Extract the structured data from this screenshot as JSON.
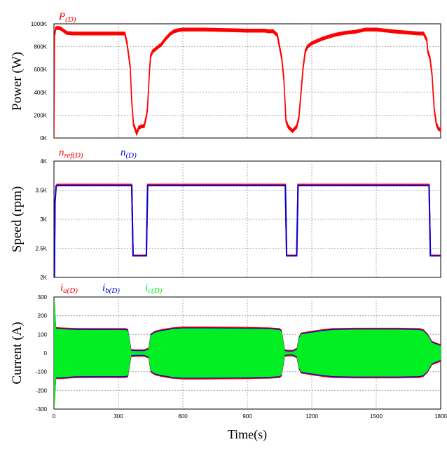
{
  "colors": {
    "red": "#ff0000",
    "blue": "#0000dd",
    "green": "#00ee22",
    "grid": "#9a9a9a"
  },
  "chart_data": [
    {
      "type": "line",
      "ylabel": "Power (W)",
      "ylim": [
        0,
        1000000
      ],
      "ytick_labels": [
        "0K",
        "200K",
        "400K",
        "600K",
        "800K",
        "1000K"
      ],
      "ytick_values": [
        0,
        200000,
        400000,
        600000,
        800000,
        1000000
      ],
      "xlim": [
        0,
        1800
      ],
      "xtick_values": [
        0,
        300,
        600,
        900,
        1200,
        1500,
        1800
      ],
      "grid": true,
      "legend": [
        {
          "main": "P",
          "sub": "(D)",
          "color": "#ff0000"
        }
      ],
      "series": [
        {
          "name": "P(D)",
          "color": "#ff0000",
          "band": 12000,
          "x": [
            0,
            3,
            8,
            15,
            30,
            60,
            90,
            100,
            150,
            200,
            250,
            300,
            320,
            330,
            340,
            355,
            362,
            370,
            378,
            385,
            395,
            405,
            420,
            430,
            435,
            440,
            445,
            450,
            460,
            480,
            500,
            520,
            540,
            560,
            580,
            600,
            620,
            700,
            800,
            900,
            980,
            1000,
            1020,
            1040,
            1060,
            1070,
            1080,
            1090,
            1100,
            1110,
            1120,
            1130,
            1140,
            1150,
            1160,
            1170,
            1180,
            1200,
            1250,
            1300,
            1350,
            1400,
            1450,
            1500,
            1600,
            1700,
            1720,
            1735,
            1740,
            1745,
            1750,
            1760,
            1770,
            1780,
            1790,
            1800,
            1820
          ],
          "y": [
            0,
            900000,
            960000,
            965000,
            960000,
            920000,
            915000,
            915000,
            915000,
            915000,
            915000,
            915000,
            915000,
            915000,
            830000,
            620000,
            320000,
            120000,
            80000,
            40000,
            90000,
            100000,
            105000,
            190000,
            250000,
            420000,
            600000,
            720000,
            760000,
            790000,
            820000,
            870000,
            910000,
            935000,
            945000,
            950000,
            950000,
            950000,
            945000,
            940000,
            940000,
            935000,
            935000,
            900000,
            700000,
            520000,
            150000,
            100000,
            80000,
            60000,
            80000,
            100000,
            180000,
            400000,
            620000,
            760000,
            800000,
            830000,
            870000,
            900000,
            920000,
            930000,
            950000,
            950000,
            930000,
            915000,
            915000,
            860000,
            760000,
            730000,
            700000,
            550000,
            250000,
            120000,
            80000,
            70000,
            70000
          ]
        }
      ]
    },
    {
      "type": "line",
      "ylabel": "Speed (rpm)",
      "ylim": [
        2000,
        4000
      ],
      "ytick_labels": [
        "2K",
        "2.5K",
        "3K",
        "3.5K",
        "4K"
      ],
      "ytick_values": [
        2000,
        2500,
        3000,
        3500,
        4000
      ],
      "xlim": [
        0,
        1800
      ],
      "xtick_values": [
        0,
        300,
        600,
        900,
        1200,
        1500,
        1800
      ],
      "grid": true,
      "legend": [
        {
          "main": "n",
          "sub": "ref(D)",
          "color": "#ff0000"
        },
        {
          "main": "n",
          "sub": "(D)",
          "color": "#0000dd"
        }
      ],
      "series": [
        {
          "name": "nref(D)",
          "color": "#ff0000",
          "x": [
            0,
            2,
            5,
            10,
            15,
            355,
            362,
            368,
            430,
            436,
            442,
            1070,
            1077,
            1083,
            1130,
            1136,
            1142,
            1740,
            1746,
            1752,
            1820
          ],
          "y": [
            2000,
            2000,
            3300,
            3580,
            3600,
            3600,
            3600,
            2380,
            2380,
            3600,
            3600,
            3600,
            3600,
            2380,
            2380,
            3600,
            3600,
            3600,
            3600,
            2380,
            2380
          ]
        },
        {
          "name": "n(D)",
          "color": "#0000dd",
          "x": [
            0,
            2,
            5,
            10,
            15,
            355,
            362,
            368,
            430,
            436,
            442,
            1070,
            1077,
            1083,
            1130,
            1136,
            1142,
            1740,
            1746,
            1752,
            1820
          ],
          "y": [
            2000,
            2000,
            3300,
            3560,
            3580,
            3580,
            3580,
            2370,
            2370,
            3580,
            3580,
            3580,
            3580,
            2370,
            2370,
            3580,
            3580,
            3580,
            3580,
            2370,
            2370
          ]
        }
      ]
    },
    {
      "type": "area",
      "ylabel": "Current (A)",
      "xlabel": "Time(s)",
      "ylim": [
        -300,
        300
      ],
      "ytick_labels": [
        "-300",
        "-200",
        "-100",
        "0",
        "100",
        "200",
        "300"
      ],
      "ytick_values": [
        -300,
        -200,
        -100,
        0,
        100,
        200,
        300
      ],
      "xlim": [
        0,
        1800
      ],
      "xtick_labels": [
        "0",
        "300",
        "600",
        "900",
        "1200",
        "1500",
        "1800"
      ],
      "xtick_values": [
        0,
        300,
        600,
        900,
        1200,
        1500,
        1800
      ],
      "grid": true,
      "legend": [
        {
          "main": "i",
          "sub": "a(D)",
          "color": "#ff0000"
        },
        {
          "main": "i",
          "sub": "b(D)",
          "color": "#0000dd"
        },
        {
          "main": "i",
          "sub": "c(D)",
          "color": "#00ee22"
        }
      ],
      "envelope": {
        "x": [
          0,
          3,
          10,
          30,
          100,
          200,
          300,
          330,
          345,
          360,
          380,
          420,
          440,
          450,
          470,
          500,
          550,
          600,
          700,
          900,
          1000,
          1050,
          1060,
          1075,
          1090,
          1110,
          1130,
          1140,
          1150,
          1200,
          1250,
          1300,
          1400,
          1600,
          1700,
          1720,
          1740,
          1760,
          1800,
          1820
        ],
        "upper": [
          300,
          280,
          130,
          128,
          125,
          124,
          124,
          124,
          120,
          12,
          10,
          10,
          20,
          95,
          110,
          118,
          128,
          132,
          132,
          130,
          128,
          124,
          115,
          10,
          8,
          8,
          18,
          80,
          100,
          110,
          118,
          124,
          126,
          126,
          124,
          118,
          95,
          55,
          38,
          38
        ],
        "lower": [
          -300,
          -280,
          -130,
          -130,
          -125,
          -124,
          -124,
          -124,
          -120,
          -12,
          -10,
          -10,
          -20,
          -95,
          -110,
          -118,
          -128,
          -132,
          -132,
          -130,
          -128,
          -124,
          -115,
          -10,
          -8,
          -8,
          -18,
          -80,
          -100,
          -110,
          -118,
          -124,
          -126,
          -126,
          -124,
          -118,
          -95,
          -55,
          -38,
          -38
        ]
      },
      "series": [
        {
          "name": "ia(D)",
          "color": "#ff0000"
        },
        {
          "name": "ib(D)",
          "color": "#0000dd"
        },
        {
          "name": "ic(D)",
          "color": "#00ee22"
        }
      ]
    }
  ]
}
